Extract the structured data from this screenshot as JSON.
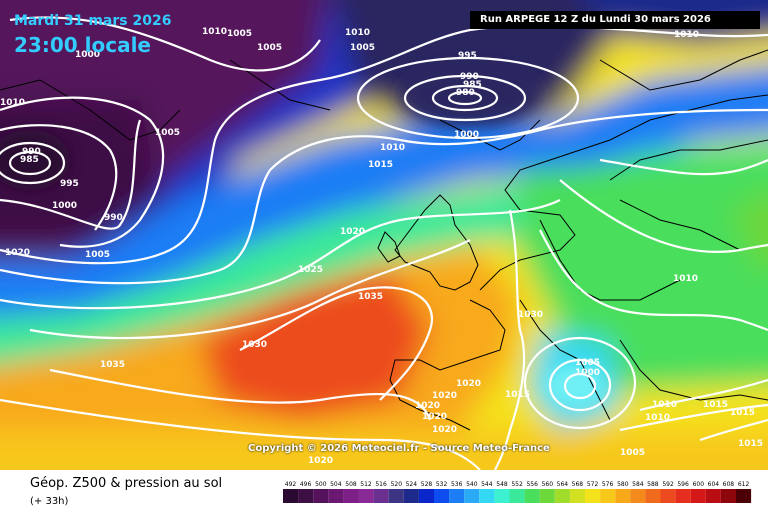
{
  "header": {
    "date_line": "Mardi 31 mars 2026",
    "time_line": "23:00 locale",
    "run_info": "Run ARPEGE 12 Z du Lundi 30 mars 2026"
  },
  "copyright": "Copyright © 2026 Meteociel.fr - Source Meteo-France",
  "footer": {
    "title": "Géop. Z500 & pression au sol",
    "subtitle": "(+ 33h)"
  },
  "legend": {
    "labels": [
      "492",
      "496",
      "500",
      "504",
      "508",
      "512",
      "516",
      "520",
      "524",
      "528",
      "532",
      "536",
      "540",
      "544",
      "548",
      "552",
      "556",
      "560",
      "564",
      "568",
      "572",
      "576",
      "580",
      "584",
      "588",
      "592",
      "596",
      "600",
      "604",
      "608",
      "612"
    ],
    "colors": [
      "#2a0a30",
      "#3c0f45",
      "#55125c",
      "#6a1872",
      "#7e1f87",
      "#8a2a96",
      "#6a2f8f",
      "#3b3584",
      "#1d2a8c",
      "#0a25c9",
      "#0f4cf0",
      "#1c7df5",
      "#2aaaf5",
      "#35d8f2",
      "#3cf0d0",
      "#3ae89a",
      "#49de5c",
      "#6cd83a",
      "#9fdd2a",
      "#d2e021",
      "#f4e21b",
      "#f7c81a",
      "#f8a91a",
      "#f58a1c",
      "#f06a1e",
      "#ec4b1f",
      "#e52e1d",
      "#d41818",
      "#b80d12",
      "#8c060c",
      "#4a0004"
    ]
  },
  "map": {
    "colors": {
      "ocean_warm": "#f06a1e",
      "ocean_cool": "#1d2a8c",
      "low_core": "#55125c",
      "continent": "#49de5c"
    },
    "isobars": [
      {
        "label": "1010"
      },
      {
        "label": "1005"
      },
      {
        "label": "1000"
      },
      {
        "label": "995"
      },
      {
        "label": "990"
      },
      {
        "label": "985"
      },
      {
        "label": "1015"
      },
      {
        "label": "1020"
      },
      {
        "label": "1025"
      },
      {
        "label": "1030"
      },
      {
        "label": "1035"
      }
    ],
    "labels": [
      {
        "text": "1010",
        "name": "isobar-label-1010-a"
      },
      {
        "text": "1005",
        "name": "isobar-label-1005-a"
      },
      {
        "text": "1000",
        "name": "isobar-label-1000-a"
      },
      {
        "text": "1005",
        "name": "isobar-label-1005-b"
      },
      {
        "text": "1010",
        "name": "isobar-label-1010-b"
      },
      {
        "text": "1005",
        "name": "isobar-label-1005-c"
      },
      {
        "text": "995",
        "name": "isobar-label-995-a"
      },
      {
        "text": "990",
        "name": "isobar-label-990-a"
      },
      {
        "text": "985",
        "name": "isobar-label-985-a"
      },
      {
        "text": "980",
        "name": "isobar-label-980-a"
      },
      {
        "text": "1000",
        "name": "isobar-label-1000-b"
      },
      {
        "text": "1010",
        "name": "isobar-label-1010-c"
      },
      {
        "text": "1010",
        "name": "isobar-label-1010-d"
      },
      {
        "text": "1005",
        "name": "isobar-label-1005-d"
      },
      {
        "text": "990",
        "name": "isobar-label-990-b"
      },
      {
        "text": "985",
        "name": "isobar-label-985-b"
      },
      {
        "text": "995",
        "name": "isobar-label-995-b"
      },
      {
        "text": "1000",
        "name": "isobar-label-1000-c"
      },
      {
        "text": "990",
        "name": "isobar-label-990-c"
      },
      {
        "text": "1020",
        "name": "isobar-label-1020-a"
      },
      {
        "text": "1005",
        "name": "isobar-label-1005-e"
      },
      {
        "text": "1010",
        "name": "isobar-label-1010-e"
      },
      {
        "text": "1015",
        "name": "isobar-label-1015-a"
      },
      {
        "text": "1020",
        "name": "isobar-label-1020-b"
      },
      {
        "text": "1025",
        "name": "isobar-label-1025"
      },
      {
        "text": "1035",
        "name": "isobar-label-1035-a"
      },
      {
        "text": "1030",
        "name": "isobar-label-1030-a"
      },
      {
        "text": "1035",
        "name": "isobar-label-1035-b"
      },
      {
        "text": "1030",
        "name": "isobar-label-1030-b"
      },
      {
        "text": "1010",
        "name": "isobar-label-1010-f"
      },
      {
        "text": "1005",
        "name": "isobar-label-1005-f"
      },
      {
        "text": "1000",
        "name": "isobar-label-1000-d"
      },
      {
        "text": "1015",
        "name": "isobar-label-1015-b"
      },
      {
        "text": "1020",
        "name": "isobar-label-1020-c"
      },
      {
        "text": "1020",
        "name": "isobar-label-1020-d"
      },
      {
        "text": "1020",
        "name": "isobar-label-1020-e"
      },
      {
        "text": "1020",
        "name": "isobar-label-1020-f"
      },
      {
        "text": "1020",
        "name": "isobar-label-1020-g"
      },
      {
        "text": "1010",
        "name": "isobar-label-1010-g"
      },
      {
        "text": "1010",
        "name": "isobar-label-1010-h"
      },
      {
        "text": "1015",
        "name": "isobar-label-1015-c"
      },
      {
        "text": "1015",
        "name": "isobar-label-1015-d"
      },
      {
        "text": "1015",
        "name": "isobar-label-1015-e"
      },
      {
        "text": "1005",
        "name": "isobar-label-1005-g"
      },
      {
        "text": "1020",
        "name": "isobar-label-1020-h"
      }
    ]
  }
}
